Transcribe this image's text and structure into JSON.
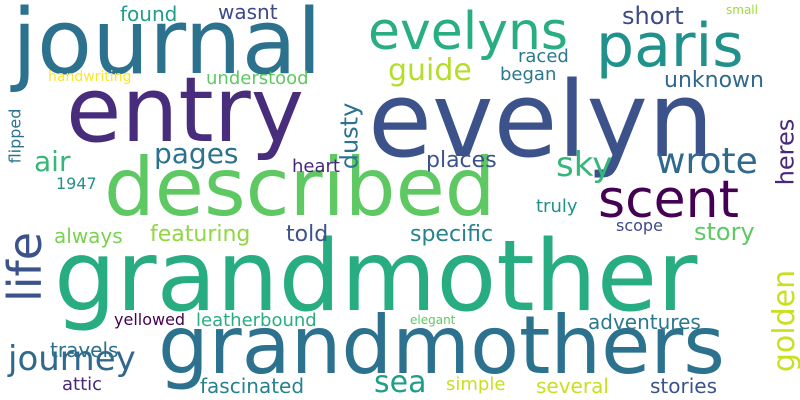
{
  "words": [
    {
      "id": "grandmother",
      "text": "grandmother",
      "color": "#27ad81"
    },
    {
      "id": "grandmothers",
      "text": "grandmothers",
      "color": "#2c728e"
    },
    {
      "id": "described",
      "text": "described",
      "color": "#5ec962"
    },
    {
      "id": "evelyn",
      "text": "evelyn",
      "color": "#3b528b"
    },
    {
      "id": "entry",
      "text": "entry",
      "color": "#472d7b"
    },
    {
      "id": "journal",
      "text": "journal",
      "color": "#2c728e"
    },
    {
      "id": "paris",
      "text": "paris",
      "color": "#21918c"
    },
    {
      "id": "evelyns",
      "text": "evelyns",
      "color": "#28ae80"
    },
    {
      "id": "scent",
      "text": "scent",
      "color": "#440154"
    },
    {
      "id": "life",
      "text": "life",
      "color": "#3b528b"
    },
    {
      "id": "journey",
      "text": "journey",
      "color": "#31688e"
    },
    {
      "id": "golden",
      "text": "golden",
      "color": "#c8e020"
    },
    {
      "id": "wrote",
      "text": "wrote",
      "color": "#31688e"
    },
    {
      "id": "sky",
      "text": "sky",
      "color": "#35b779"
    },
    {
      "id": "pages",
      "text": "pages",
      "color": "#2c728e"
    },
    {
      "id": "air",
      "text": "air",
      "color": "#35b779"
    },
    {
      "id": "guide",
      "text": "guide",
      "color": "#b5de2b"
    },
    {
      "id": "sea",
      "text": "sea",
      "color": "#1f9e89"
    },
    {
      "id": "heres",
      "text": "heres",
      "color": "#482878"
    },
    {
      "id": "dusty",
      "text": "dusty",
      "color": "#2c728e"
    },
    {
      "id": "short",
      "text": "short",
      "color": "#3e4989"
    },
    {
      "id": "unknown",
      "text": "unknown",
      "color": "#31688e"
    },
    {
      "id": "places",
      "text": "places",
      "color": "#3b528b"
    },
    {
      "id": "story",
      "text": "story",
      "color": "#5ec962"
    },
    {
      "id": "specific",
      "text": "specific",
      "color": "#26828e"
    },
    {
      "id": "featuring",
      "text": "featuring",
      "color": "#90d743"
    },
    {
      "id": "told",
      "text": "told",
      "color": "#3b528b"
    },
    {
      "id": "always",
      "text": "always",
      "color": "#7ad151"
    },
    {
      "id": "understood",
      "text": "understood",
      "color": "#5ec962"
    },
    {
      "id": "found",
      "text": "found",
      "color": "#1f9e89"
    },
    {
      "id": "wasnt",
      "text": "wasnt",
      "color": "#3e4989"
    },
    {
      "id": "raced",
      "text": "raced",
      "color": "#2a788e"
    },
    {
      "id": "began",
      "text": "began",
      "color": "#2a788e"
    },
    {
      "id": "heart",
      "text": "heart",
      "color": "#482878"
    },
    {
      "id": "truly",
      "text": "truly",
      "color": "#21918c"
    },
    {
      "id": "scope",
      "text": "scope",
      "color": "#3e4989"
    },
    {
      "id": "flipped",
      "text": "flipped",
      "color": "#2c728e"
    },
    {
      "id": "1947",
      "text": "1947",
      "color": "#21918c"
    },
    {
      "id": "handwriting",
      "text": "handwriting",
      "color": "#fde725"
    },
    {
      "id": "small",
      "text": "small",
      "color": "#a0da39"
    },
    {
      "id": "yellowed",
      "text": "yellowed",
      "color": "#440154"
    },
    {
      "id": "leatherbound",
      "text": "leatherbound",
      "color": "#27ad81"
    },
    {
      "id": "elegant",
      "text": "elegant",
      "color": "#5ec962"
    },
    {
      "id": "adventures",
      "text": "adventures",
      "color": "#2a788e"
    },
    {
      "id": "travels",
      "text": "travels",
      "color": "#2c728e"
    },
    {
      "id": "attic",
      "text": "attic",
      "color": "#482878"
    },
    {
      "id": "fascinated",
      "text": "fascinated",
      "color": "#26828e"
    },
    {
      "id": "simple",
      "text": "simple",
      "color": "#c8e020"
    },
    {
      "id": "several",
      "text": "several",
      "color": "#c8e020"
    },
    {
      "id": "stories",
      "text": "stories",
      "color": "#3b528b"
    }
  ]
}
